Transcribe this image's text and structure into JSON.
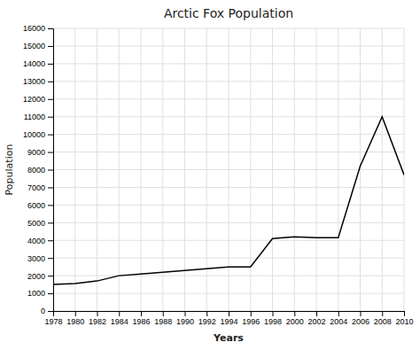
{
  "chart_data": {
    "type": "line",
    "title": "Arctic Fox Population",
    "xlabel": "Years",
    "ylabel": "Population",
    "x": [
      1978,
      1980,
      1982,
      1984,
      1986,
      1988,
      1990,
      1992,
      1994,
      1996,
      1998,
      2000,
      2002,
      2004,
      2006,
      2008,
      2010
    ],
    "values": [
      1500,
      1550,
      1700,
      2000,
      2100,
      2200,
      2300,
      2400,
      2500,
      2500,
      4100,
      4200,
      4150,
      4150,
      8200,
      11000,
      7700
    ],
    "color": "#000000",
    "xlim": [
      1978,
      2010
    ],
    "xticks": [
      1978,
      1980,
      1982,
      1984,
      1986,
      1988,
      1990,
      1992,
      1994,
      1996,
      1998,
      2000,
      2002,
      2004,
      2006,
      2008,
      2010
    ],
    "ylim": [
      0,
      16000
    ],
    "yticks": [
      0,
      1000,
      2000,
      3000,
      4000,
      5000,
      6000,
      7000,
      8000,
      9000,
      10000,
      11000,
      12000,
      13000,
      14000,
      15000,
      16000
    ],
    "grid": true
  }
}
